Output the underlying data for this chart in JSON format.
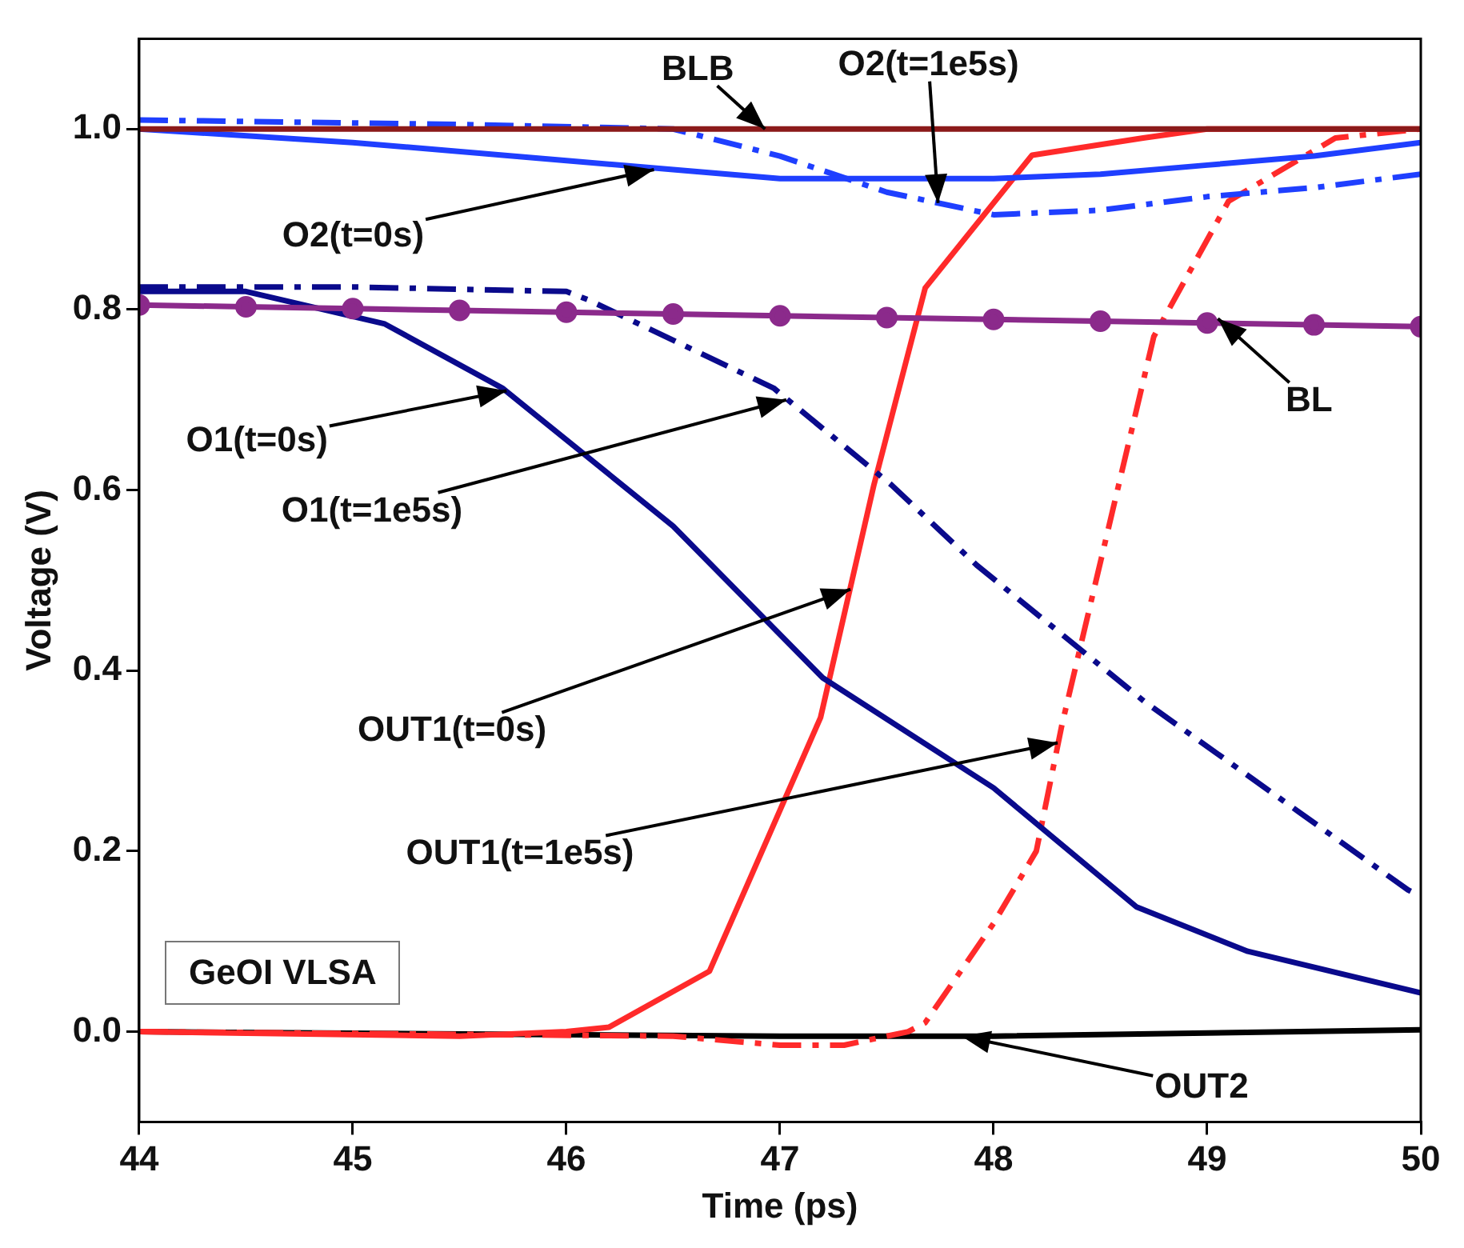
{
  "chart_data": {
    "type": "line",
    "xlabel": "Time (ps)",
    "ylabel": "Voltage (V)",
    "xlim": [
      44,
      50
    ],
    "xticks": [
      44,
      45,
      46,
      47,
      48,
      49,
      50
    ],
    "ylim": [
      -0.1,
      1.1
    ],
    "yticks": [
      {
        "value": 0,
        "label": "0.0"
      },
      {
        "value": 0.2,
        "label": "0.2"
      },
      {
        "value": 0.4,
        "label": "0.4"
      },
      {
        "value": 0.6,
        "label": "0.6"
      },
      {
        "value": 0.8,
        "label": "0.8"
      },
      {
        "value": 1,
        "label": "1.0"
      }
    ],
    "grid": false,
    "legend": false,
    "marker": "none",
    "series": [
      {
        "color": "#8b1a1a",
        "line_style": "solid",
        "x": [
          44,
          45,
          46,
          47,
          48,
          49,
          50
        ],
        "values": [
          1,
          1,
          1,
          1,
          1,
          1,
          1
        ]
      },
      {
        "color": "#1f3fff",
        "line_style": "solid",
        "x": [
          44,
          45,
          46,
          46.5,
          47,
          47.5,
          48,
          48.5,
          49,
          49.5,
          50
        ],
        "values": [
          1,
          0.985,
          0.965,
          0.955,
          0.945,
          0.945,
          0.945,
          0.95,
          0.96,
          0.97,
          0.985
        ]
      },
      {
        "color": "#1f3fff",
        "line_style": "dashed",
        "x": [
          44,
          45.5,
          46.5,
          47,
          47.5,
          48,
          48.5,
          49,
          49.5,
          50
        ],
        "values": [
          1.01,
          1.005,
          1,
          0.97,
          0.93,
          0.905,
          0.91,
          0.925,
          0.935,
          0.95
        ]
      },
      {
        "color": "#8b2a8b",
        "line_style": "solid",
        "marker": "circle",
        "x": [
          44,
          44.5,
          45,
          45.5,
          46,
          46.5,
          47,
          47.5,
          48,
          48.5,
          49,
          49.5,
          50
        ],
        "values": [
          0.805,
          0.803,
          0.801,
          0.799,
          0.797,
          0.795,
          0.793,
          0.791,
          0.789,
          0.787,
          0.785,
          0.783,
          0.781
        ]
      },
      {
        "color": "#0a0a8c",
        "line_style": "solid",
        "x": [
          44,
          44.5,
          45.15,
          45.7,
          46.5,
          47.2,
          48,
          48.67,
          49.19,
          50
        ],
        "values": [
          0.82,
          0.82,
          0.784,
          0.713,
          0.56,
          0.392,
          0.27,
          0.138,
          0.089,
          0.043
        ]
      },
      {
        "color": "#0a0a8c",
        "line_style": "dashed",
        "x": [
          44,
          45,
          46,
          46.1,
          46.97,
          47.52,
          47.92,
          48.71,
          49.94,
          50
        ],
        "values": [
          0.825,
          0.825,
          0.82,
          0.811,
          0.713,
          0.606,
          0.517,
          0.365,
          0.157,
          0.15
        ]
      },
      {
        "color": "#ff2a2a",
        "line_style": "solid",
        "x": [
          44,
          45.5,
          46,
          46.2,
          46.67,
          47.19,
          47.44,
          47.68,
          48.18,
          48.7,
          49,
          50
        ],
        "values": [
          0,
          -0.005,
          0,
          0.005,
          0.067,
          0.348,
          0.606,
          0.824,
          0.971,
          0.99,
          1,
          1
        ]
      },
      {
        "color": "#ff2a2a",
        "line_style": "dashed",
        "x": [
          44,
          46.5,
          47,
          47.3,
          47.6,
          47.68,
          48,
          48.2,
          48.32,
          48.75,
          49.1,
          49.6,
          50
        ],
        "values": [
          0,
          -0.005,
          -0.015,
          -0.015,
          0,
          0.01,
          0.12,
          0.2,
          0.34,
          0.77,
          0.92,
          0.99,
          1
        ]
      },
      {
        "color": "#000000",
        "line_style": "solid",
        "x": [
          44,
          47,
          48,
          50
        ],
        "values": [
          0,
          -0.005,
          -0.005,
          0.002
        ]
      }
    ],
    "annotations": [
      {
        "text": "BLB",
        "x": 46.93,
        "y": 1
      },
      {
        "text": "O2(t=1e5s)",
        "x": 47.74,
        "y": 0.918
      },
      {
        "text": "O2(t=0s)",
        "x": 46.41,
        "y": 0.955
      },
      {
        "text": "BL",
        "x": 49.05,
        "y": 0.79
      },
      {
        "text": "O1(t=0s)",
        "x": 45.72,
        "y": 0.71
      },
      {
        "text": "O1(t=1e5s)",
        "x": 47.03,
        "y": 0.7
      },
      {
        "text": "OUT1(t=0s)",
        "x": 47.33,
        "y": 0.49
      },
      {
        "text": "OUT1(t=1e5s)",
        "x": 48.3,
        "y": 0.32
      },
      {
        "text": "OUT2",
        "x": 47.85,
        "y": -0.005
      },
      "GeOI VLSA"
    ]
  }
}
